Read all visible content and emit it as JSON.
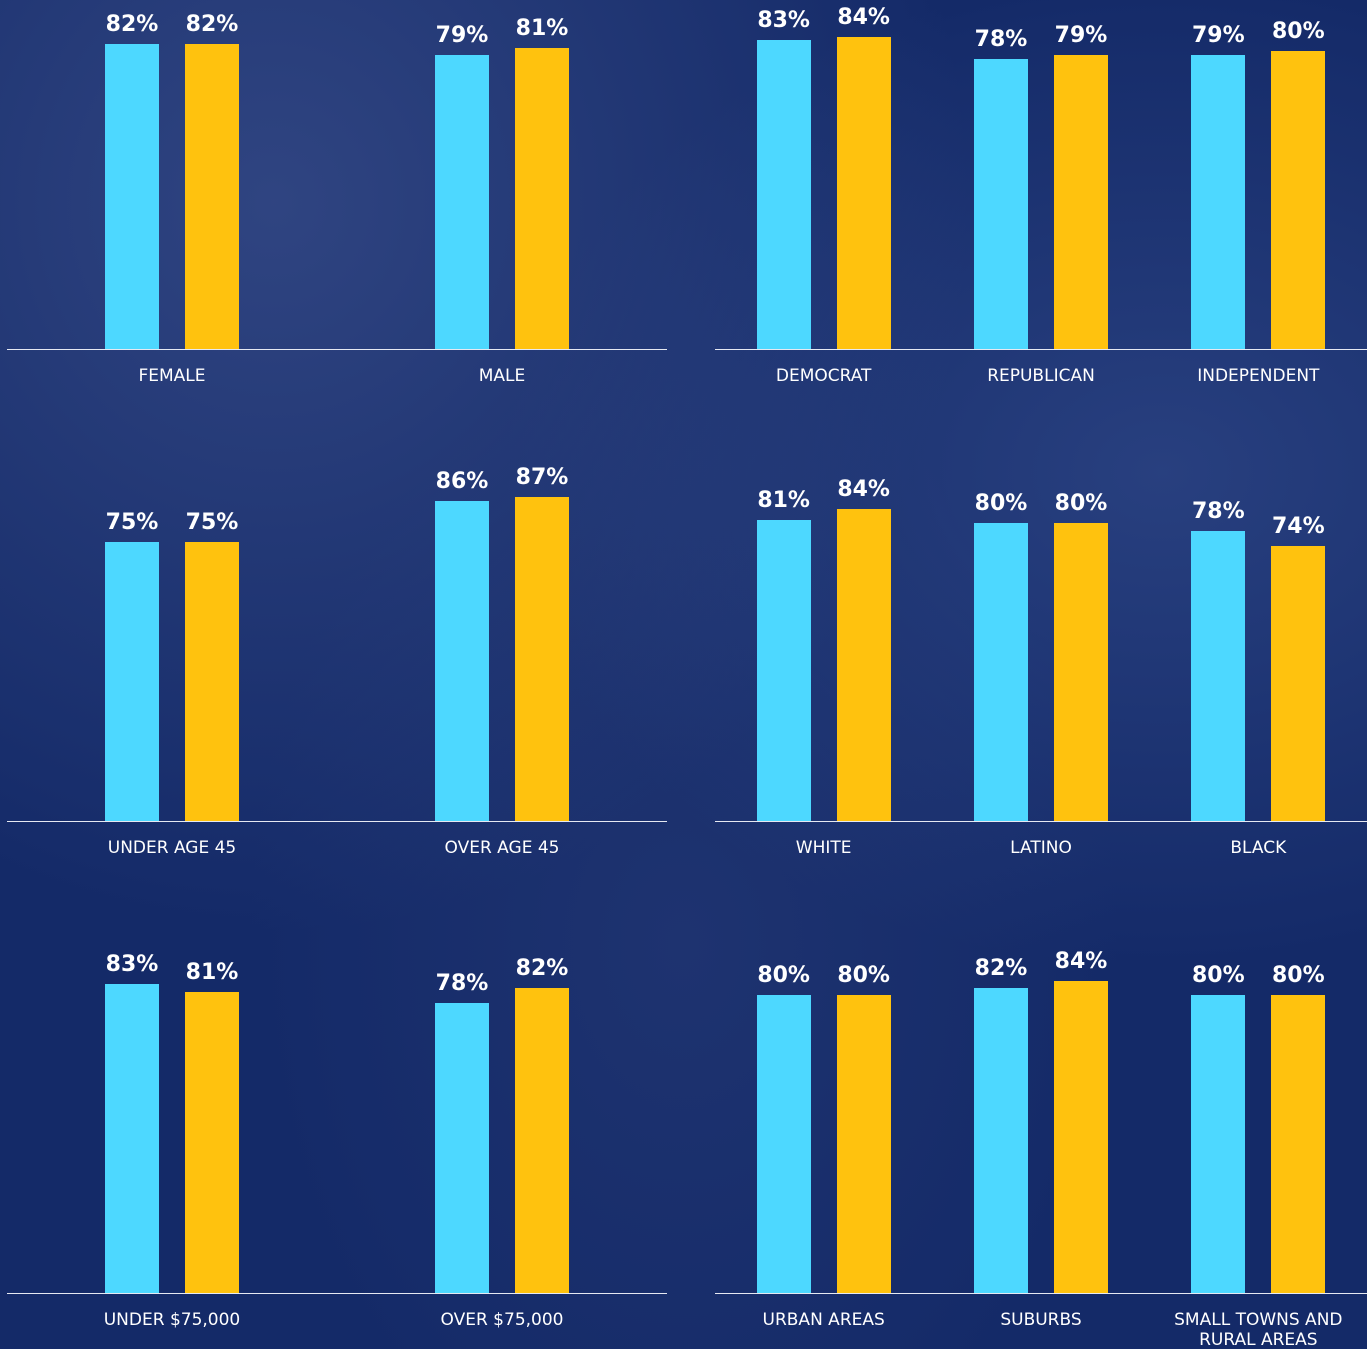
{
  "chart_data": [
    {
      "type": "bar",
      "categories": [
        "FEMALE",
        "MALE"
      ],
      "series": [
        {
          "color": "#4dd8ff",
          "values": [
            82,
            79
          ],
          "value_labels": [
            "82%",
            "79%"
          ]
        },
        {
          "color": "#ffc20e",
          "values": [
            82,
            81
          ],
          "value_labels": [
            "82%",
            "81%"
          ]
        }
      ]
    },
    {
      "type": "bar",
      "categories": [
        "DEMOCRAT",
        "REPUBLICAN",
        "INDEPENDENT"
      ],
      "series": [
        {
          "color": "#4dd8ff",
          "values": [
            83,
            78,
            79
          ],
          "value_labels": [
            "83%",
            "78%",
            "79%"
          ]
        },
        {
          "color": "#ffc20e",
          "values": [
            84,
            79,
            80
          ],
          "value_labels": [
            "84%",
            "79%",
            "80%"
          ]
        }
      ]
    },
    {
      "type": "bar",
      "categories": [
        "UNDER AGE 45",
        "OVER AGE 45"
      ],
      "series": [
        {
          "color": "#4dd8ff",
          "values": [
            75,
            86
          ],
          "value_labels": [
            "75%",
            "86%"
          ]
        },
        {
          "color": "#ffc20e",
          "values": [
            75,
            87
          ],
          "value_labels": [
            "75%",
            "87%"
          ]
        }
      ]
    },
    {
      "type": "bar",
      "categories": [
        "WHITE",
        "LATINO",
        "BLACK"
      ],
      "series": [
        {
          "color": "#4dd8ff",
          "values": [
            81,
            80,
            78
          ],
          "value_labels": [
            "81%",
            "80%",
            "78%"
          ]
        },
        {
          "color": "#ffc20e",
          "values": [
            84,
            80,
            74
          ],
          "value_labels": [
            "84%",
            "80%",
            "74%"
          ]
        }
      ]
    },
    {
      "type": "bar",
      "categories": [
        "UNDER $75,000",
        "OVER $75,000"
      ],
      "series": [
        {
          "color": "#4dd8ff",
          "values": [
            83,
            78
          ],
          "value_labels": [
            "83%",
            "78%"
          ]
        },
        {
          "color": "#ffc20e",
          "values": [
            81,
            82
          ],
          "value_labels": [
            "81%",
            "82%"
          ]
        }
      ]
    },
    {
      "type": "bar",
      "categories": [
        "URBAN AREAS",
        "SUBURBS",
        "SMALL TOWNS AND RURAL AREAS"
      ],
      "series": [
        {
          "color": "#4dd8ff",
          "values": [
            80,
            82,
            80
          ],
          "value_labels": [
            "80%",
            "82%",
            "80%"
          ]
        },
        {
          "color": "#ffc20e",
          "values": [
            80,
            84,
            80
          ],
          "value_labels": [
            "80%",
            "84%",
            "80%"
          ]
        }
      ]
    }
  ]
}
